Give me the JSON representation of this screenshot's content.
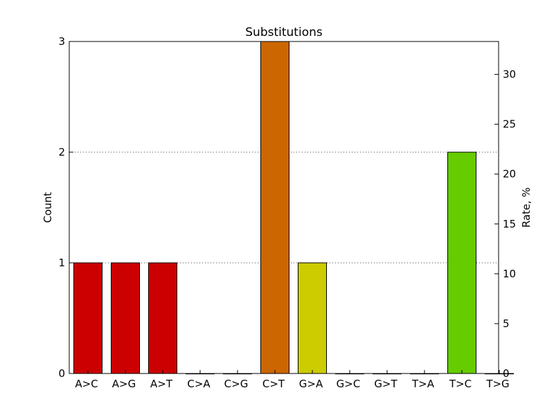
{
  "chart_data": {
    "type": "bar",
    "title": "Substitutions",
    "xlabel": "",
    "ylabel": "Count",
    "ylabel_right": "Rate, %",
    "categories": [
      "A>C",
      "A>G",
      "A>T",
      "C>A",
      "C>G",
      "C>T",
      "G>A",
      "G>C",
      "G>T",
      "T>A",
      "T>C",
      "T>G"
    ],
    "series": [
      {
        "values": [
          1,
          1,
          1,
          0,
          0,
          3,
          1,
          0,
          0,
          0,
          2,
          0
        ]
      }
    ],
    "bar_colors": [
      "#cc0000",
      "#cc0000",
      "#cc0000",
      "#cc6600",
      "#cc6600",
      "#cc6600",
      "#cccc00",
      "#cccc00",
      "#cccc00",
      "#66cc00",
      "#66cc00",
      "#66cc00"
    ],
    "ylim": [
      0,
      3
    ],
    "yticks": [
      0,
      1,
      2,
      3
    ],
    "ylim_right": [
      0,
      33.3
    ],
    "yticks_right": [
      0,
      5,
      10,
      15,
      20,
      25,
      30
    ],
    "grid": "horizontal dotted"
  }
}
